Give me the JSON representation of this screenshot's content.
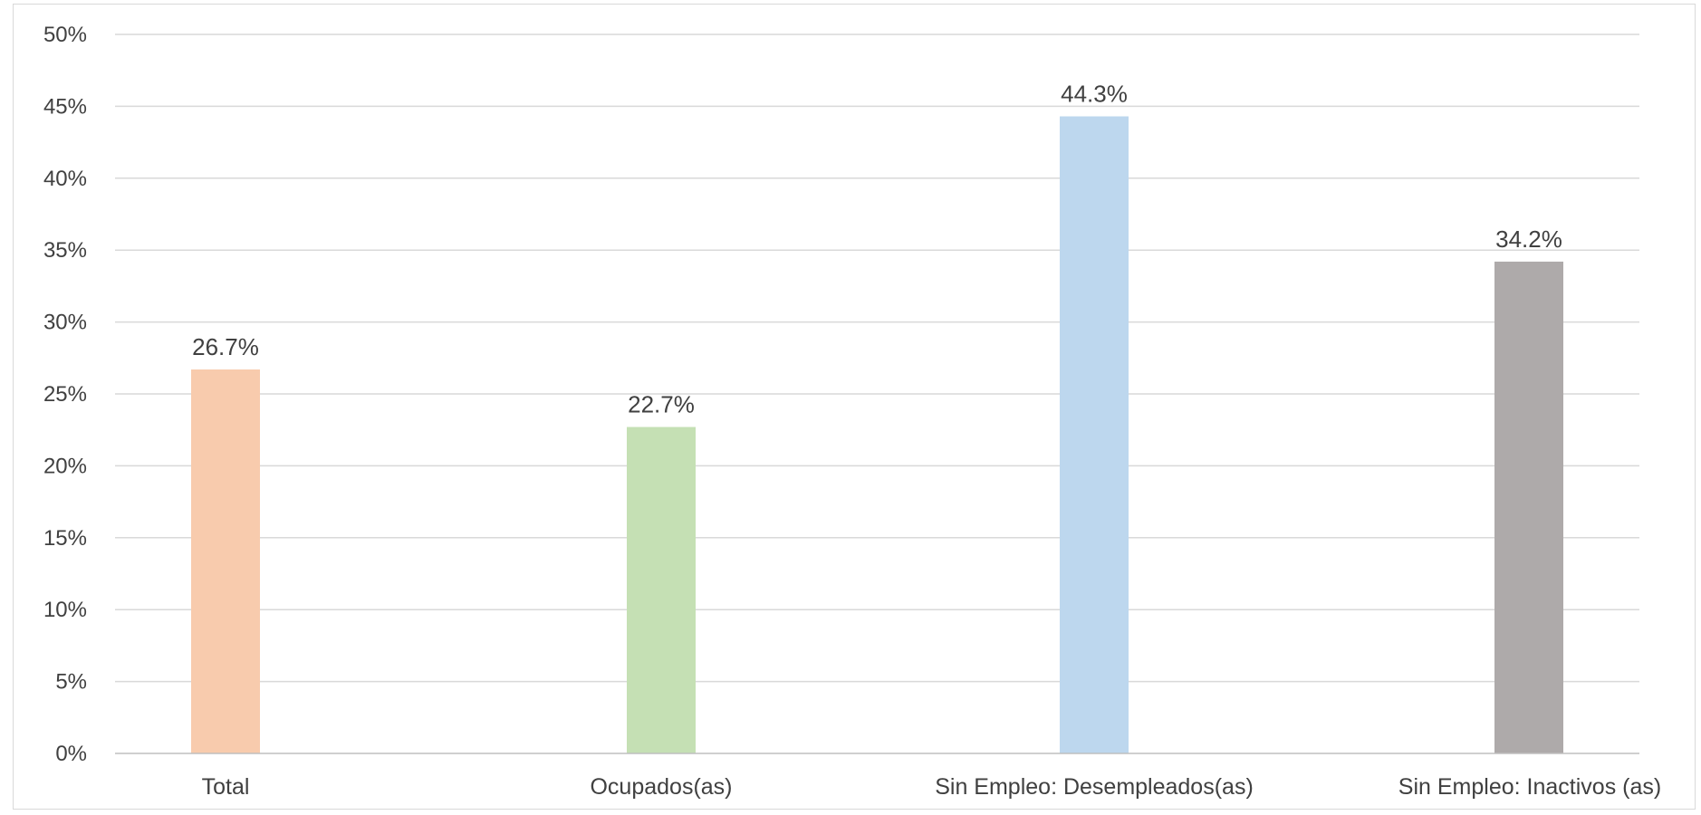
{
  "chart_data": {
    "type": "bar",
    "title": "",
    "xlabel": "",
    "ylabel": "",
    "categories": [
      "Total",
      "Ocupados(as)",
      "Sin Empleo: Desempleados(as)",
      "Sin Empleo: Inactivos (as)"
    ],
    "values": [
      26.7,
      22.7,
      44.3,
      34.2
    ],
    "data_labels": [
      "26.7%",
      "22.7%",
      "44.3%",
      "34.2%"
    ],
    "colors": [
      "#f8cbad",
      "#c5e0b4",
      "#bdd7ee",
      "#aeaaaa"
    ],
    "ylim": [
      0,
      50
    ],
    "y_ticks": [
      0,
      5,
      10,
      15,
      20,
      25,
      30,
      35,
      40,
      45,
      50
    ],
    "y_tick_labels": [
      "0%",
      "5%",
      "10%",
      "15%",
      "20%",
      "25%",
      "30%",
      "35%",
      "40%",
      "45%",
      "50%"
    ],
    "grid": true,
    "legend": "none",
    "gridline_color": "#d9d9d9",
    "axis_color": "#bfbfbf",
    "text_color": "#404040"
  }
}
